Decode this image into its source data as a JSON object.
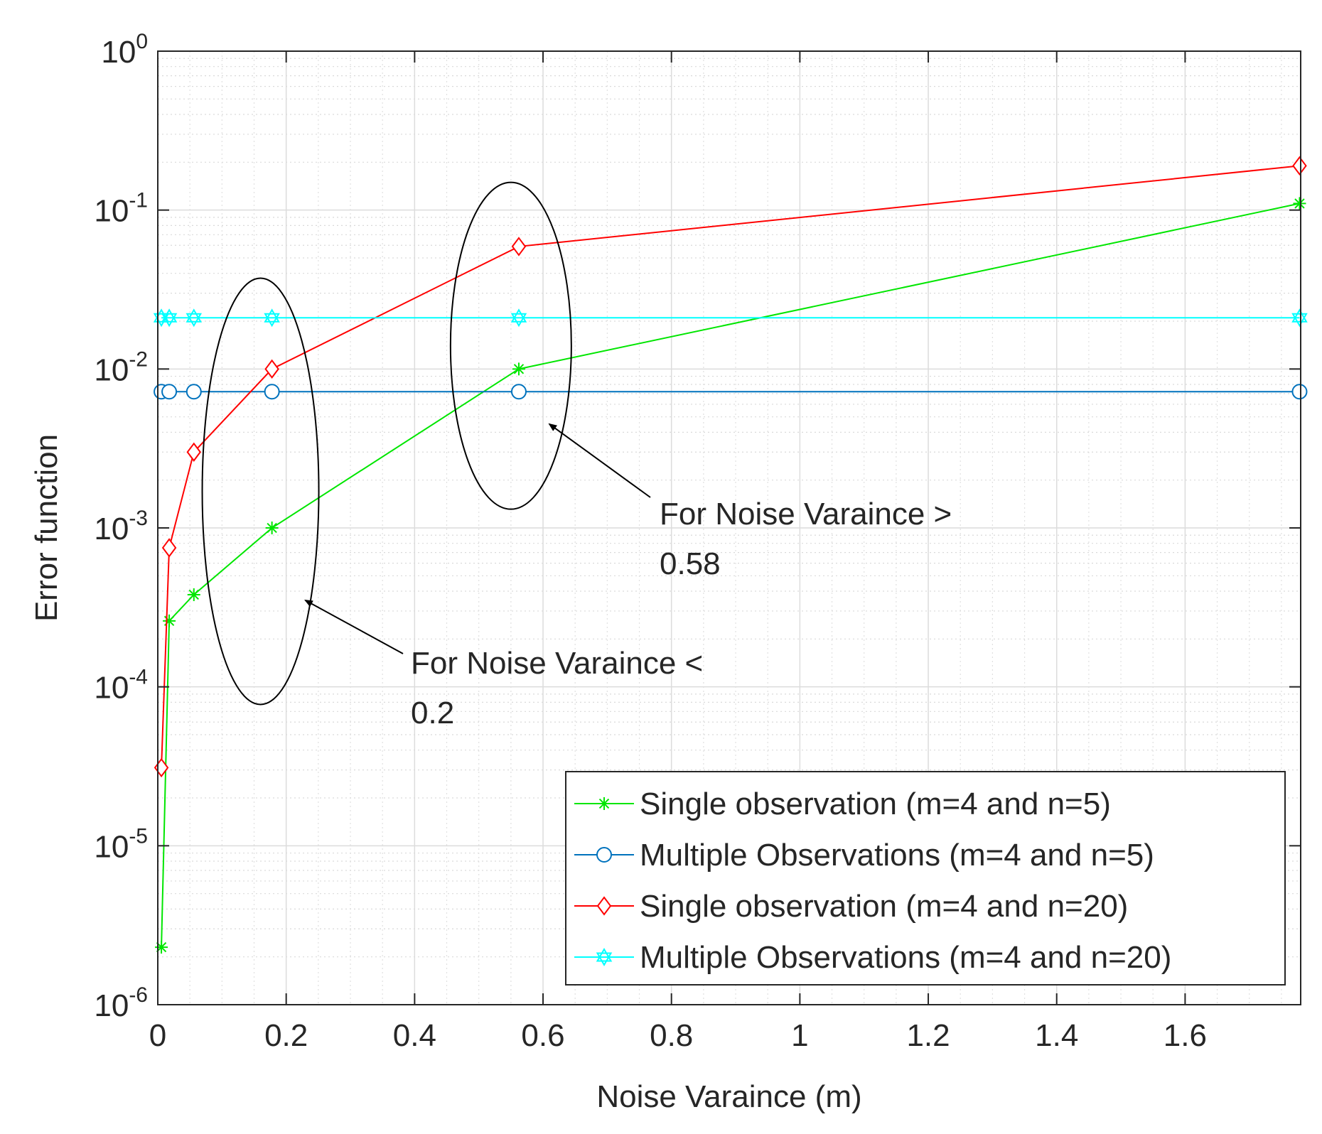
{
  "chart_data": {
    "type": "line",
    "xlabel": "Noise Varaince (m)",
    "ylabel": "Error function",
    "yscale": "log",
    "xlim": [
      0,
      1.78
    ],
    "ylim": [
      1e-06,
      1
    ],
    "grid": true,
    "minor_grid": true,
    "legend_position": "bottom-right",
    "x_ticks": [
      {
        "value": 0,
        "label": "0"
      },
      {
        "value": 0.2,
        "label": "0.2"
      },
      {
        "value": 0.4,
        "label": "0.4"
      },
      {
        "value": 0.6,
        "label": "0.6"
      },
      {
        "value": 0.8,
        "label": "0.8"
      },
      {
        "value": 1,
        "label": "1"
      },
      {
        "value": 1.2,
        "label": "1.2"
      },
      {
        "value": 1.4,
        "label": "1.4"
      },
      {
        "value": 1.6,
        "label": "1.6"
      }
    ],
    "y_ticks": [
      {
        "exp": 0,
        "base": "10",
        "sup": "0"
      },
      {
        "exp": -1,
        "base": "10",
        "sup": "-1"
      },
      {
        "exp": -2,
        "base": "10",
        "sup": "-2"
      },
      {
        "exp": -3,
        "base": "10",
        "sup": "-3"
      },
      {
        "exp": -4,
        "base": "10",
        "sup": "-4"
      },
      {
        "exp": -5,
        "base": "10",
        "sup": "-5"
      },
      {
        "exp": -6,
        "base": "10",
        "sup": "-6"
      }
    ],
    "series": [
      {
        "name": "Single observation (m=4 and n=5)",
        "color": "#00e600",
        "marker": "asterisk",
        "x": [
          0.0056,
          0.0178,
          0.0562,
          0.1778,
          0.5623,
          1.7783
        ],
        "y": [
          2.3e-06,
          0.00026,
          0.00038,
          0.001,
          0.01,
          0.11
        ]
      },
      {
        "name": "Multiple Observations (m=4 and n=5)",
        "color": "#0072bd",
        "marker": "circle",
        "x": [
          0.0056,
          0.0178,
          0.0562,
          0.1778,
          0.5623,
          1.7783
        ],
        "y": [
          0.0072,
          0.0072,
          0.0072,
          0.0072,
          0.0072,
          0.0072
        ]
      },
      {
        "name": "Single observation (m=4 and n=20)",
        "color": "#ff0000",
        "marker": "diamond",
        "x": [
          0.0056,
          0.0178,
          0.0562,
          0.1778,
          0.5623,
          1.7783
        ],
        "y": [
          3.1e-05,
          0.00075,
          0.003,
          0.01,
          0.059,
          0.19
        ]
      },
      {
        "name": "Multiple Observations (m=4 and n=20)",
        "color": "#00ffff",
        "marker": "hexagram",
        "x": [
          0.0056,
          0.0178,
          0.0562,
          0.1778,
          0.5623,
          1.7783
        ],
        "y": [
          0.021,
          0.021,
          0.021,
          0.021,
          0.021,
          0.021
        ]
      }
    ],
    "annotations": [
      {
        "line1": "For Noise Varaince <",
        "line2": "0.2",
        "ellipse_center": {
          "x": 0.16,
          "y": 0.0017
        },
        "arrow_target": {
          "x": 0.23,
          "y": 0.00035
        }
      },
      {
        "line1": "For Noise Varaince >",
        "line2": "0.58",
        "ellipse_center": {
          "x": 0.55,
          "y": 0.014
        },
        "arrow_target": {
          "x": 0.61,
          "y": 0.0045
        }
      }
    ]
  }
}
